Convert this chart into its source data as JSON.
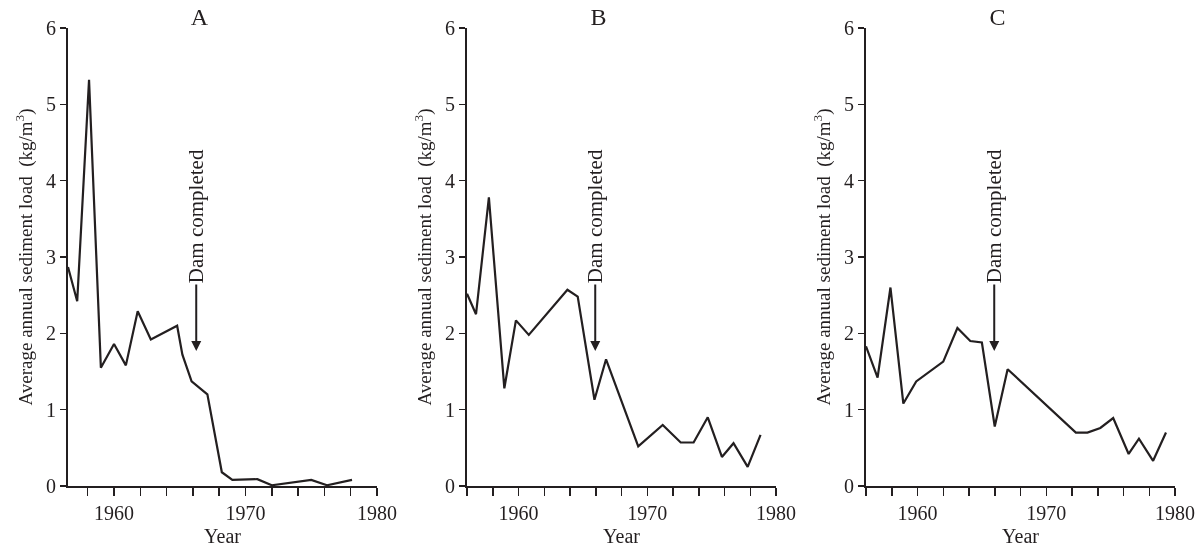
{
  "chart_data": [
    {
      "type": "line",
      "title": "A",
      "xlabel": "Year",
      "ylabel": "Average annual sediment load  (kg/m$^{3}$)",
      "x": [
        1956.5,
        1957.2,
        1958.1,
        1959.0,
        1960.0,
        1960.9,
        1961.8,
        1962.8,
        1964.8,
        1965.2,
        1965.9,
        1967.1,
        1968.2,
        1969.0,
        1970.9,
        1972.0,
        1975.0,
        1976.2,
        1978.1
      ],
      "series": [
        {
          "color": "#231f20",
          "values": [
            2.87,
            2.42,
            5.32,
            1.55,
            1.86,
            1.58,
            2.29,
            1.92,
            2.1,
            1.72,
            1.37,
            1.2,
            0.18,
            0.08,
            0.09,
            0.01,
            0.08,
            0.01,
            0.08
          ]
        }
      ],
      "annotations": [
        "Dam completed"
      ],
      "xlim": [
        1956.5,
        1980
      ],
      "xticks": [
        {
          "value": 1958,
          "label": null
        },
        1960,
        {
          "value": 1962,
          "label": null
        },
        {
          "value": 1964,
          "label": null
        },
        {
          "value": 1966,
          "label": null
        },
        {
          "value": 1968,
          "label": null
        },
        1970,
        {
          "value": 1972,
          "label": null
        },
        {
          "value": 1974,
          "label": null
        },
        {
          "value": 1976,
          "label": null
        },
        {
          "value": 1978,
          "label": null
        },
        1980
      ],
      "ylim": [
        0,
        6
      ],
      "yticks": [
        0,
        1,
        2,
        3,
        4,
        5,
        6
      ],
      "line_style": "solid"
    },
    {
      "type": "line",
      "title": "B",
      "xlabel": "Year",
      "ylabel": "Average annual sediment load  (kg/m$^{3}$)",
      "x": [
        1956.0,
        1956.7,
        1957.7,
        1958.9,
        1959.8,
        1960.8,
        1963.8,
        1964.6,
        1965.9,
        1966.8,
        1969.3,
        1971.2,
        1972.6,
        1973.6,
        1974.7,
        1975.8,
        1976.7,
        1977.8,
        1978.8
      ],
      "series": [
        {
          "color": "#231f20",
          "values": [
            2.52,
            2.25,
            3.78,
            1.28,
            2.17,
            1.98,
            2.57,
            2.48,
            1.13,
            1.66,
            0.52,
            0.8,
            0.57,
            0.57,
            0.9,
            0.38,
            0.56,
            0.25,
            0.67
          ]
        }
      ],
      "annotations": [
        "Dam completed"
      ],
      "xlim": [
        1956,
        1980
      ],
      "xticks": [
        {
          "value": 1956,
          "label": null
        },
        {
          "value": 1958,
          "label": null
        },
        1960,
        {
          "value": 1962,
          "label": null
        },
        {
          "value": 1964,
          "label": null
        },
        {
          "value": 1966,
          "label": null
        },
        {
          "value": 1968,
          "label": null
        },
        1970,
        {
          "value": 1972,
          "label": null
        },
        {
          "value": 1974,
          "label": null
        },
        {
          "value": 1976,
          "label": null
        },
        {
          "value": 1978,
          "label": null
        },
        1980
      ],
      "ylim": [
        0,
        6
      ],
      "yticks": [
        0,
        1,
        2,
        3,
        4,
        5,
        6
      ],
      "line_style": "solid"
    },
    {
      "type": "line",
      "title": "C",
      "xlabel": "Year",
      "ylabel": "Average annual sediment load  (kg/m$^{3}$)",
      "x": [
        1956.0,
        1956.9,
        1957.9,
        1958.9,
        1959.9,
        1962.0,
        1963.1,
        1964.1,
        1965.0,
        1966.0,
        1967.0,
        1972.3,
        1973.2,
        1974.2,
        1975.2,
        1976.4,
        1977.2,
        1978.3,
        1979.3
      ],
      "series": [
        {
          "color": "#231f20",
          "values": [
            1.83,
            1.42,
            2.6,
            1.08,
            1.37,
            1.63,
            2.07,
            1.9,
            1.88,
            0.78,
            1.53,
            0.7,
            0.7,
            0.76,
            0.89,
            0.42,
            0.62,
            0.33,
            0.7
          ]
        }
      ],
      "annotations": [
        "Dam completed"
      ],
      "xlim": [
        1956,
        1980
      ],
      "xticks": [
        {
          "value": 1956,
          "label": null
        },
        {
          "value": 1958,
          "label": null
        },
        1960,
        {
          "value": 1962,
          "label": null
        },
        {
          "value": 1964,
          "label": null
        },
        {
          "value": 1966,
          "label": null
        },
        {
          "value": 1968,
          "label": null
        },
        1970,
        {
          "value": 1972,
          "label": null
        },
        {
          "value": 1974,
          "label": null
        },
        {
          "value": 1976,
          "label": null
        },
        {
          "value": 1978,
          "label": null
        },
        1980
      ],
      "ylim": [
        0,
        6
      ],
      "yticks": [
        0,
        1,
        2,
        3,
        4,
        5,
        6
      ],
      "line_style": "solid"
    }
  ]
}
